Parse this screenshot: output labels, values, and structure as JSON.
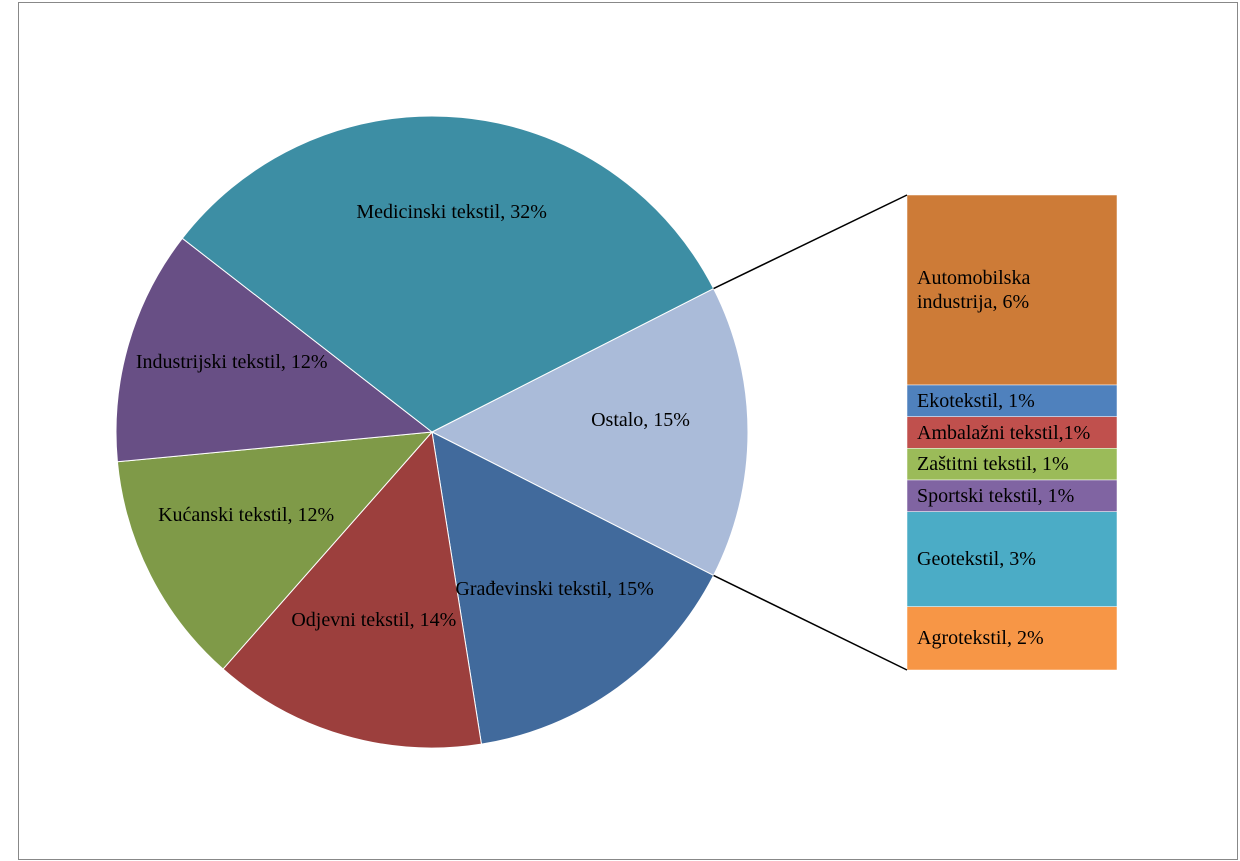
{
  "chart_data": {
    "type": "pie-of-bar",
    "values": [
      15,
      15,
      14,
      12,
      12,
      32
    ],
    "value_labels": [
      "Ostalo, 15%",
      "Građevinski tekstil, 15%",
      "Odjevni tekstil, 14%",
      "Kućanski tekstil, 12%",
      "Industrijski tekstil, 12%",
      "Medicinski tekstil, 32%"
    ],
    "colors": [
      "#aabbd9",
      "#416a9c",
      "#9c3f3d",
      "#7f9a48",
      "#684f85",
      "#3d8ea4"
    ],
    "breakdown": {
      "values": [
        6,
        1,
        1,
        1,
        1,
        3,
        2
      ],
      "value_labels": [
        "Automobilska industrija, 6%",
        "Ekotekstil, 1%",
        "Ambalažni tekstil,1%",
        "Zaštitni tekstil, 1%",
        "Sportski tekstil, 1%",
        "Geotekstil, 3%",
        "Agrotekstil, 2%"
      ],
      "colors": [
        "#cd7b37",
        "#4f81bd",
        "#c0504d",
        "#9bbb59",
        "#8064a2",
        "#4bacc6",
        "#f79646"
      ]
    }
  }
}
